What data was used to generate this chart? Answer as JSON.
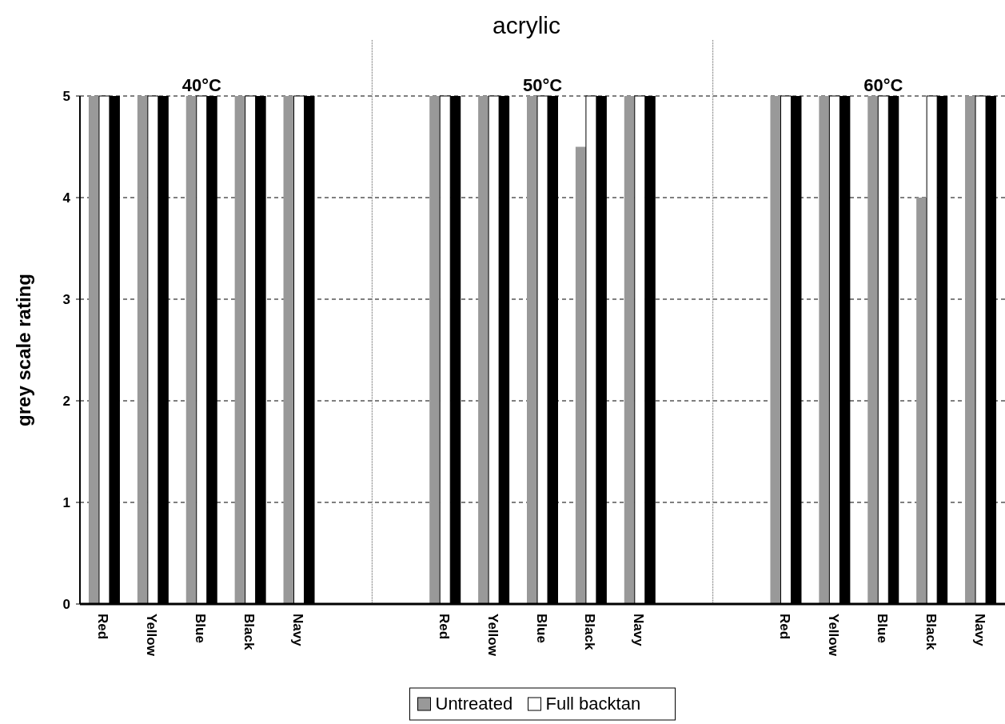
{
  "chart_data": {
    "type": "bar",
    "title": "acrylic",
    "ylabel": "grey scale rating",
    "categories": [
      "Red",
      "Yellow",
      "Blue",
      "Black",
      "Navy",
      null,
      null,
      "Red",
      "Yellow",
      "Blue",
      "Black",
      "Navy",
      null,
      null,
      "Red",
      "Yellow",
      "Blue",
      "Black",
      "Navy"
    ],
    "series": [
      {
        "name": "Untreated",
        "color": "#999999",
        "values": [
          5,
          5,
          5,
          5,
          5,
          null,
          null,
          5,
          5,
          5,
          4.5,
          5,
          null,
          null,
          5,
          5,
          5,
          4,
          5
        ]
      },
      {
        "name": "Full backtan",
        "color": "#ffffff",
        "values": [
          5,
          5,
          5,
          5,
          5,
          null,
          null,
          5,
          5,
          5,
          5,
          5,
          null,
          null,
          5,
          5,
          5,
          5,
          5
        ]
      },
      {
        "color": "#000000",
        "values": [
          5,
          5,
          5,
          5,
          5,
          null,
          null,
          5,
          5,
          5,
          5,
          5,
          null,
          null,
          5,
          5,
          5,
          5,
          5
        ]
      }
    ],
    "annotations": [
      "40°C",
      "50°C",
      "60°C"
    ],
    "ylim": [
      0,
      5
    ],
    "yticks": [
      0,
      1,
      2,
      3,
      4,
      5
    ],
    "grid": "y",
    "line_style": "dashed",
    "legend": "bottom"
  }
}
